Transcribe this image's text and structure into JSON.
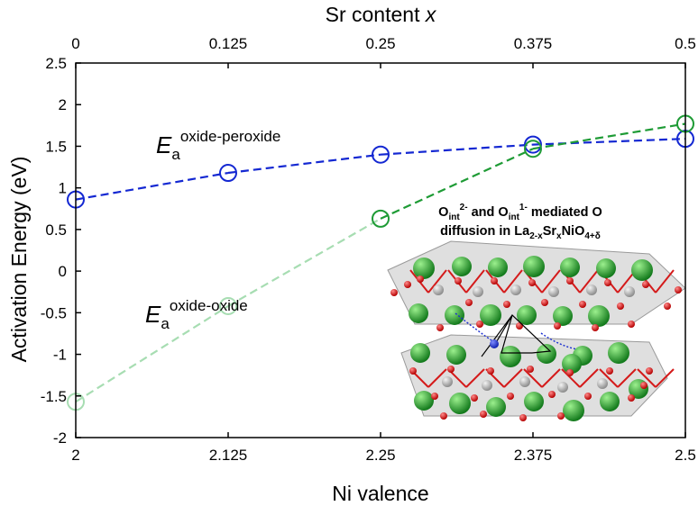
{
  "chart_data": {
    "type": "line",
    "x": [
      2,
      2.125,
      2.25,
      2.375,
      2.5
    ],
    "xlabel": "Ni valence",
    "x_ticks": [
      "2",
      "2.125",
      "2.25",
      "2.375",
      "2.5"
    ],
    "top_xlabel_main": "Sr content ",
    "top_xlabel_var": "x",
    "top_ticks": [
      "0",
      "0.125",
      "0.25",
      "0.375",
      "0.5"
    ],
    "ylabel": "Activation Energy (eV)",
    "ylim": [
      -2,
      2.5
    ],
    "y_ticks": [
      "-2",
      "-1.5",
      "-1",
      "-0.5",
      "0",
      "0.5",
      "1",
      "1.5",
      "2",
      "2.5"
    ],
    "series": [
      {
        "name_main": "E",
        "name_sub": "a",
        "name_sup": "oxide-peroxide",
        "values": [
          0.86,
          1.18,
          1.4,
          1.52,
          1.59
        ],
        "color": "#1428d2",
        "light_color": "#1428d2"
      },
      {
        "name_main": "E",
        "name_sub": "a",
        "name_sup": "oxide-oxide",
        "values": [
          -1.57,
          -0.42,
          0.63,
          1.47,
          1.77
        ],
        "color": "#1e9b35",
        "light_color": "#a7ddb2"
      }
    ],
    "inset": {
      "line1_a": "O",
      "line1_b": "int",
      "line1_c": "2-",
      "line1_d": " and O",
      "line1_e": "int",
      "line1_f": "1-",
      "line1_g": " mediated O",
      "line2_a": "diffusion in La",
      "line2_b": "2-x",
      "line2_c": "Sr",
      "line2_d": "x",
      "line2_e": "NiO",
      "line2_f": "4+δ"
    }
  }
}
